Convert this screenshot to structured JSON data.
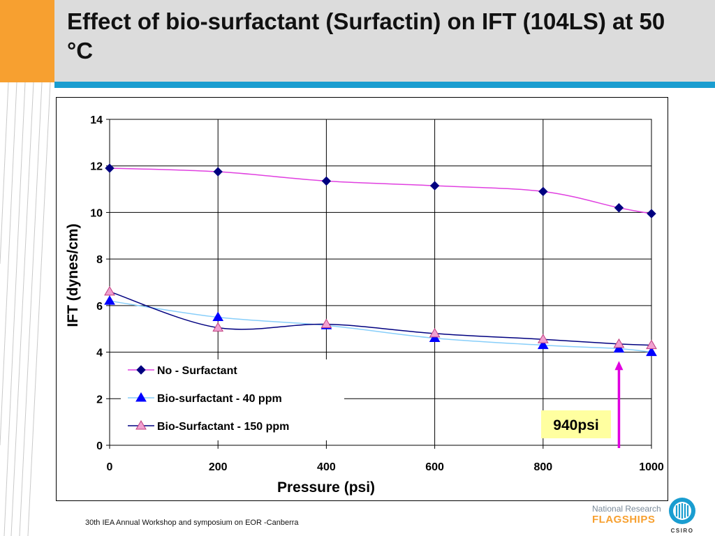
{
  "slide": {
    "title": "Effect of bio-surfactant (Surfactin) on IFT (104LS) at 50 °C",
    "footer": "30th IEA Annual Workshop and symposium on EOR -Canberra",
    "logo": {
      "line1": "National Research",
      "line2": "FLAGSHIPS",
      "csiro": "CSIRO"
    },
    "colors": {
      "orange": "#f7a030",
      "blue": "#1a9dd0",
      "header": "#dcdcdc"
    }
  },
  "chart_data": {
    "type": "line",
    "xlabel": "Pressure (psi)",
    "ylabel": "IFT (dynes/cm)",
    "xlim": [
      0,
      1000
    ],
    "ylim": [
      0,
      14
    ],
    "xticks": [
      0,
      200,
      400,
      600,
      800,
      1000
    ],
    "yticks": [
      0,
      2,
      4,
      6,
      8,
      10,
      12,
      14
    ],
    "grid": true,
    "legend_position": "bottom-left",
    "series": [
      {
        "name": "No - Surfactant",
        "marker": "diamond",
        "marker_color": "#000080",
        "line_color": "#e040e0",
        "x": [
          0,
          200,
          400,
          600,
          800,
          940,
          1000
        ],
        "y": [
          11.9,
          11.75,
          11.35,
          11.15,
          10.9,
          10.2,
          9.95
        ]
      },
      {
        "name": "Bio-surfactant - 40 ppm",
        "marker": "triangle",
        "marker_color": "#0000ff",
        "line_color": "#87cefa",
        "x": [
          0,
          200,
          400,
          600,
          800,
          940,
          1000
        ],
        "y": [
          6.2,
          5.5,
          5.15,
          4.6,
          4.3,
          4.15,
          4.0
        ]
      },
      {
        "name": "Bio-Surfactant - 150 ppm",
        "marker": "triangle",
        "marker_color": "#f0a0d0",
        "marker_stroke": "#c04080",
        "line_color": "#000080",
        "x": [
          0,
          200,
          400,
          600,
          800,
          940,
          1000
        ],
        "y": [
          6.6,
          5.05,
          5.2,
          4.8,
          4.55,
          4.35,
          4.3
        ]
      }
    ],
    "annotation": {
      "text": "940psi",
      "x": 940,
      "y_top": 3.5,
      "arrow_color": "#e000e0",
      "box_color": "#ffffa0"
    }
  }
}
